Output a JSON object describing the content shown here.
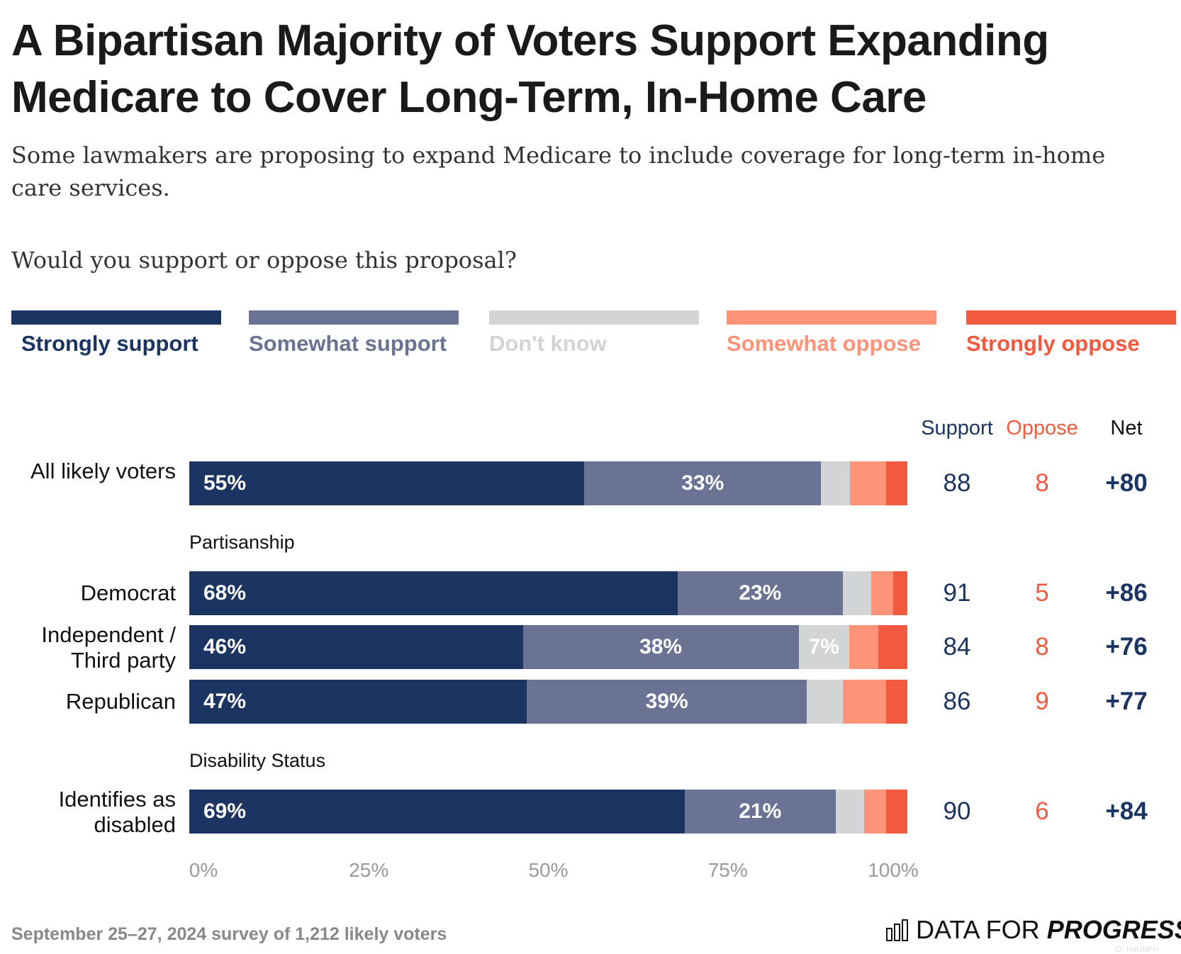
{
  "title": "A Bipartisan Majority of Voters Support Expanding Medicare to Cover Long-Term, In-Home Care",
  "subtitle": "Some lawmakers are proposing to expand Medicare to include coverage for long-term in-home care services.",
  "question": "Would you support or oppose this proposal?",
  "legend": [
    {
      "label": "Strongly support",
      "color": "#1b3461"
    },
    {
      "label": "Somewhat support",
      "color": "#6a7394"
    },
    {
      "label": "Don't know",
      "color": "#d3d4d6"
    },
    {
      "label": "Somewhat oppose",
      "color": "#fd9378"
    },
    {
      "label": "Strongly oppose",
      "color": "#f15a3e"
    }
  ],
  "columns": {
    "support": "Support",
    "oppose": "Oppose",
    "net": "Net"
  },
  "footer": "September 25–27, 2024 survey of 1,212 likely voters",
  "logo": {
    "text_light": "DATA FOR ",
    "text_bold": "PROGRESS",
    "id": "ID: H4UNPH"
  },
  "chart_data": {
    "type": "bar",
    "orientation": "horizontal-stacked",
    "xlim": [
      0,
      100
    ],
    "xticks": [
      "0%",
      "25%",
      "50%",
      "75%",
      "100%"
    ],
    "series_names": [
      "Strongly support",
      "Somewhat support",
      "Don't know",
      "Somewhat oppose",
      "Strongly oppose"
    ],
    "sections": [
      "Partisanship",
      "Disability Status"
    ],
    "rows": [
      {
        "label": "All likely voters",
        "section": "",
        "values": [
          55,
          33,
          4,
          5,
          3
        ],
        "labels": [
          "55%",
          "33%",
          "",
          "",
          ""
        ],
        "support": "88",
        "oppose": "8",
        "net": "+80"
      },
      {
        "label": "Democrat",
        "section": "Partisanship",
        "values": [
          68,
          23,
          4,
          3,
          2
        ],
        "labels": [
          "68%",
          "23%",
          "",
          "",
          ""
        ],
        "support": "91",
        "oppose": "5",
        "net": "+86"
      },
      {
        "label": "Independent / Third party",
        "section": "Partisanship",
        "values": [
          46,
          38,
          7,
          4,
          4
        ],
        "labels": [
          "46%",
          "38%",
          "7%",
          "",
          ""
        ],
        "support": "84",
        "oppose": "8",
        "net": "+76"
      },
      {
        "label": "Republican",
        "section": "Partisanship",
        "values": [
          47,
          39,
          5,
          6,
          3
        ],
        "labels": [
          "47%",
          "39%",
          "",
          "",
          ""
        ],
        "support": "86",
        "oppose": "9",
        "net": "+77"
      },
      {
        "label": "Identifies as disabled",
        "section": "Disability Status",
        "values": [
          69,
          21,
          4,
          3,
          3
        ],
        "labels": [
          "69%",
          "21%",
          "",
          "",
          ""
        ],
        "support": "90",
        "oppose": "6",
        "net": "+84"
      }
    ]
  }
}
